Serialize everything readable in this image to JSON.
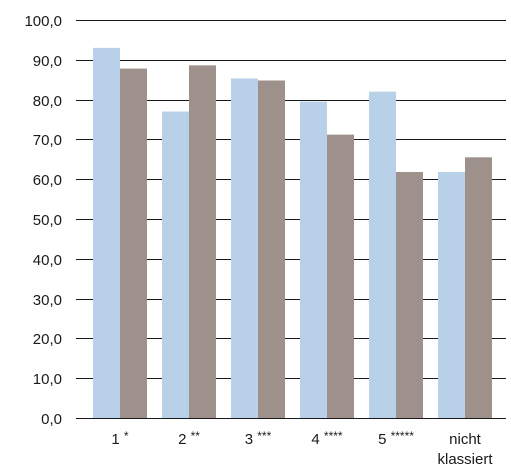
{
  "chart_data": {
    "type": "bar",
    "categories": [
      "1 *",
      "2 **",
      "3 ***",
      "4 ****",
      "5 *****",
      "nicht klassiert"
    ],
    "category_lines": [
      [
        "1 *"
      ],
      [
        "2 **"
      ],
      [
        "3 ***"
      ],
      [
        "4 ****"
      ],
      [
        "5 *****"
      ],
      [
        "nicht",
        "klassiert"
      ]
    ],
    "series": [
      {
        "values": [
          93.0,
          77.0,
          85.3,
          79.5,
          82.0,
          61.8
        ],
        "color": "#b8d0e8"
      },
      {
        "values": [
          87.8,
          88.6,
          84.8,
          71.2,
          61.8,
          65.5
        ],
        "color": "#9e918b"
      }
    ],
    "ylim": [
      0,
      100
    ],
    "yticks": [
      0,
      10,
      20,
      30,
      40,
      50,
      60,
      70,
      80,
      90,
      100
    ],
    "ytick_labels": [
      "0,0",
      "10,0",
      "20,0",
      "30,0",
      "40,0",
      "50,0",
      "60,0",
      "70,0",
      "80,0",
      "90,0",
      "100,0"
    ],
    "title": "",
    "xlabel": "",
    "ylabel": "",
    "grid": true,
    "gridline_color": "#1a1a1a"
  }
}
